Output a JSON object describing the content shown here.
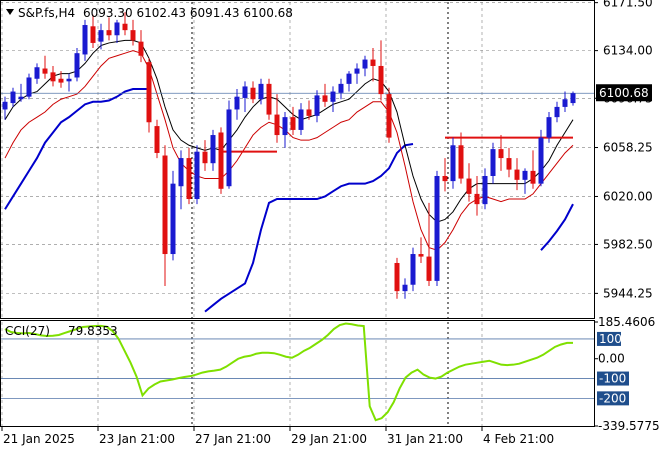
{
  "header": {
    "symbol": "S&P.fs,H4",
    "ohlc": "6093.30 6102.43 6091.43 6100.68"
  },
  "indicator": {
    "name": "CCI(27)",
    "value": "79.8353"
  },
  "colors": {
    "bull": "#1a1ad0",
    "bear": "#e01010",
    "band_outer": "#0000cc",
    "band_mid": "#000000",
    "band_inner": "#cc0000",
    "level_line": "#e01010",
    "cci_line": "#7fe000",
    "cci_level_bg": "#1f4e8c",
    "price_tag_bg": "#000000",
    "grid": "#808080"
  },
  "chart_data": [
    {
      "type": "candlestick",
      "title": "S&P.fs,H4",
      "subtitle": "6093.30 6102.43 6091.43 6100.68",
      "ylim": [
        5925,
        6172
      ],
      "y_ticks": [
        "6171.50",
        "6134.00",
        "6096.75",
        "6058.25",
        "6020.00",
        "5982.50",
        "5944.25"
      ],
      "x_ticks": [
        "21 Jan 2025",
        "23 Jan 21:00",
        "27 Jan 21:00",
        "29 Jan 21:00",
        "31 Jan 21:00",
        "4 Feb 21:00"
      ],
      "current_price": "6100.68",
      "grid": true,
      "candles": [
        {
          "o": 6088,
          "h": 6098,
          "l": 6080,
          "c": 6094
        },
        {
          "o": 6093,
          "h": 6105,
          "l": 6090,
          "c": 6102
        },
        {
          "o": 6096,
          "h": 6108,
          "l": 6094,
          "c": 6098
        },
        {
          "o": 6098,
          "h": 6116,
          "l": 6096,
          "c": 6113
        },
        {
          "o": 6112,
          "h": 6124,
          "l": 6108,
          "c": 6121
        },
        {
          "o": 6120,
          "h": 6130,
          "l": 6112,
          "c": 6116
        },
        {
          "o": 6117,
          "h": 6122,
          "l": 6106,
          "c": 6110
        },
        {
          "o": 6112,
          "h": 6118,
          "l": 6105,
          "c": 6109
        },
        {
          "o": 6110,
          "h": 6116,
          "l": 6102,
          "c": 6112
        },
        {
          "o": 6113,
          "h": 6136,
          "l": 6110,
          "c": 6132
        },
        {
          "o": 6131,
          "h": 6158,
          "l": 6126,
          "c": 6154
        },
        {
          "o": 6153,
          "h": 6162,
          "l": 6136,
          "c": 6140
        },
        {
          "o": 6141,
          "h": 6155,
          "l": 6135,
          "c": 6150
        },
        {
          "o": 6150,
          "h": 6160,
          "l": 6142,
          "c": 6146
        },
        {
          "o": 6146,
          "h": 6158,
          "l": 6140,
          "c": 6156
        },
        {
          "o": 6155,
          "h": 6164,
          "l": 6146,
          "c": 6150
        },
        {
          "o": 6150,
          "h": 6158,
          "l": 6138,
          "c": 6142
        },
        {
          "o": 6141,
          "h": 6150,
          "l": 6125,
          "c": 6130
        },
        {
          "o": 6125,
          "h": 6128,
          "l": 6070,
          "c": 6078
        },
        {
          "o": 6075,
          "h": 6080,
          "l": 6050,
          "c": 6054
        },
        {
          "o": 6052,
          "h": 6060,
          "l": 5950,
          "c": 5975
        },
        {
          "o": 5975,
          "h": 6040,
          "l": 5970,
          "c": 6030
        },
        {
          "o": 6028,
          "h": 6056,
          "l": 6010,
          "c": 6050
        },
        {
          "o": 6050,
          "h": 6058,
          "l": 6014,
          "c": 6018
        },
        {
          "o": 6018,
          "h": 6060,
          "l": 6014,
          "c": 6055
        },
        {
          "o": 6055,
          "h": 6064,
          "l": 6040,
          "c": 6046
        },
        {
          "o": 6046,
          "h": 6072,
          "l": 6040,
          "c": 6068
        },
        {
          "o": 6070,
          "h": 6074,
          "l": 6022,
          "c": 6026
        },
        {
          "o": 6028,
          "h": 6095,
          "l": 6026,
          "c": 6088
        },
        {
          "o": 6088,
          "h": 6104,
          "l": 6080,
          "c": 6098
        },
        {
          "o": 6097,
          "h": 6110,
          "l": 6086,
          "c": 6106
        },
        {
          "o": 6105,
          "h": 6110,
          "l": 6093,
          "c": 6096
        },
        {
          "o": 6096,
          "h": 6112,
          "l": 6092,
          "c": 6108
        },
        {
          "o": 6108,
          "h": 6112,
          "l": 6080,
          "c": 6084
        },
        {
          "o": 6084,
          "h": 6100,
          "l": 6062,
          "c": 6068
        },
        {
          "o": 6068,
          "h": 6086,
          "l": 6058,
          "c": 6082
        },
        {
          "o": 6082,
          "h": 6090,
          "l": 6068,
          "c": 6072
        },
        {
          "o": 6072,
          "h": 6093,
          "l": 6068,
          "c": 6088
        },
        {
          "o": 6088,
          "h": 6095,
          "l": 6080,
          "c": 6083
        },
        {
          "o": 6083,
          "h": 6103,
          "l": 6078,
          "c": 6099
        },
        {
          "o": 6099,
          "h": 6108,
          "l": 6090,
          "c": 6094
        },
        {
          "o": 6094,
          "h": 6106,
          "l": 6086,
          "c": 6102
        },
        {
          "o": 6101,
          "h": 6112,
          "l": 6096,
          "c": 6108
        },
        {
          "o": 6108,
          "h": 6118,
          "l": 6102,
          "c": 6116
        },
        {
          "o": 6116,
          "h": 6124,
          "l": 6108,
          "c": 6120
        },
        {
          "o": 6120,
          "h": 6130,
          "l": 6114,
          "c": 6127
        },
        {
          "o": 6127,
          "h": 6136,
          "l": 6110,
          "c": 6122
        },
        {
          "o": 6122,
          "h": 6142,
          "l": 6095,
          "c": 6100
        },
        {
          "o": 6100,
          "h": 6105,
          "l": 6062,
          "c": 6066
        },
        {
          "o": 5968,
          "h": 5972,
          "l": 5940,
          "c": 5946
        },
        {
          "o": 5946,
          "h": 5956,
          "l": 5940,
          "c": 5951
        },
        {
          "o": 5951,
          "h": 5980,
          "l": 5946,
          "c": 5975
        },
        {
          "o": 5975,
          "h": 5988,
          "l": 5968,
          "c": 5973
        },
        {
          "o": 5973,
          "h": 6015,
          "l": 5950,
          "c": 5954
        },
        {
          "o": 5954,
          "h": 6040,
          "l": 5950,
          "c": 6036
        },
        {
          "o": 6036,
          "h": 6050,
          "l": 6024,
          "c": 6032
        },
        {
          "o": 6032,
          "h": 6066,
          "l": 6026,
          "c": 6060
        },
        {
          "o": 6060,
          "h": 6070,
          "l": 6030,
          "c": 6034
        },
        {
          "o": 6034,
          "h": 6046,
          "l": 6016,
          "c": 6022
        },
        {
          "o": 6022,
          "h": 6036,
          "l": 6005,
          "c": 6014
        },
        {
          "o": 6014,
          "h": 6042,
          "l": 6010,
          "c": 6036
        },
        {
          "o": 6036,
          "h": 6062,
          "l": 6030,
          "c": 6057
        },
        {
          "o": 6057,
          "h": 6068,
          "l": 6040,
          "c": 6050
        },
        {
          "o": 6050,
          "h": 6058,
          "l": 6035,
          "c": 6041
        },
        {
          "o": 6041,
          "h": 6050,
          "l": 6025,
          "c": 6033
        },
        {
          "o": 6033,
          "h": 6042,
          "l": 6022,
          "c": 6040
        },
        {
          "o": 6040,
          "h": 6056,
          "l": 6026,
          "c": 6030
        },
        {
          "o": 6030,
          "h": 6072,
          "l": 6028,
          "c": 6066
        },
        {
          "o": 6066,
          "h": 6086,
          "l": 6062,
          "c": 6082
        },
        {
          "o": 6082,
          "h": 6094,
          "l": 6078,
          "c": 6090
        },
        {
          "o": 6090,
          "h": 6102,
          "l": 6086,
          "c": 6096
        },
        {
          "o": 6093,
          "h": 6102,
          "l": 6091,
          "c": 6100.68
        }
      ],
      "band_outer_segments": [
        [
          6010,
          6020,
          6030,
          6040,
          6050,
          6062,
          6070,
          6078,
          6082,
          6087,
          6092,
          6094,
          6094,
          6095,
          6098,
          6102,
          6104,
          6104,
          6104
        ],
        [
          5930,
          5935,
          5940,
          5944,
          5948,
          5952,
          5968,
          5994,
          6015,
          6018,
          6018,
          6018,
          6018,
          6018,
          6018,
          6020,
          6024,
          6028,
          6030,
          6030,
          6030,
          6032,
          6036,
          6042,
          6054,
          6060,
          6061
        ],
        [
          5978,
          5985,
          5993,
          6002,
          6014
        ]
      ],
      "band_outer_offsets": [
        0,
        25,
        67
      ],
      "band_mid": [
        6080,
        6090,
        6096,
        6100,
        6102,
        6108,
        6114,
        6116,
        6116,
        6118,
        6124,
        6132,
        6138,
        6140,
        6141,
        6142,
        6142,
        6140,
        6128,
        6112,
        6090,
        6072,
        6064,
        6060,
        6058,
        6056,
        6058,
        6056,
        6064,
        6072,
        6082,
        6090,
        6096,
        6098,
        6096,
        6090,
        6084,
        6080,
        6082,
        6084,
        6088,
        6092,
        6094,
        6096,
        6102,
        6108,
        6112,
        6110,
        6102,
        6086,
        6060,
        6036,
        6018,
        6006,
        6000,
        6002,
        6008,
        6018,
        6026,
        6030,
        6030,
        6030,
        6030,
        6030,
        6030,
        6030,
        6034,
        6040,
        6048,
        6060,
        6070,
        6080
      ],
      "band_inner": [
        6050,
        6062,
        6072,
        6078,
        6082,
        6086,
        6092,
        6096,
        6098,
        6100,
        6106,
        6114,
        6122,
        6128,
        6130,
        6132,
        6134,
        6132,
        6120,
        6100,
        6080,
        6058,
        6046,
        6040,
        6036,
        6034,
        6034,
        6034,
        6040,
        6048,
        6058,
        6068,
        6074,
        6078,
        6076,
        6072,
        6066,
        6064,
        6064,
        6066,
        6070,
        6074,
        6078,
        6080,
        6086,
        6090,
        6094,
        6094,
        6086,
        6070,
        6044,
        6016,
        5994,
        5980,
        5978,
        5984,
        5994,
        6006,
        6014,
        6018,
        6020,
        6018,
        6016,
        6018,
        6018,
        6018,
        6022,
        6030,
        6038,
        6046,
        6054,
        6060
      ],
      "horizontal_levels": [
        {
          "value": 6055,
          "from": 27,
          "to": 34
        },
        {
          "value": 6066,
          "from": 55,
          "to": 71
        }
      ],
      "session_separators": [
        23,
        55
      ]
    },
    {
      "type": "line",
      "title": "CCI(27)",
      "value_label": "79.8353",
      "ylim": [
        -339.5775,
        185.4606
      ],
      "y_ticks": [
        "185.4606",
        "100",
        "0.00",
        "-100",
        "-200",
        "-339.5775"
      ],
      "levels": [
        100,
        -100,
        -200
      ],
      "values": [
        150,
        135,
        130,
        128,
        130,
        125,
        118,
        115,
        116,
        120,
        130,
        140,
        150,
        160,
        163,
        165,
        166,
        162,
        140,
        100,
        40,
        -20,
        -90,
        -185,
        -150,
        -130,
        -115,
        -110,
        -105,
        -98,
        -92,
        -88,
        -80,
        -70,
        -64,
        -60,
        -55,
        -40,
        -20,
        0,
        10,
        15,
        25,
        30,
        30,
        28,
        20,
        10,
        5,
        20,
        40,
        55,
        75,
        95,
        120,
        150,
        170,
        178,
        174,
        168,
        165,
        -240,
        -310,
        -300,
        -270,
        -220,
        -150,
        -95,
        -70,
        -55,
        -80,
        -95,
        -100,
        -90,
        -70,
        -55,
        -40,
        -30,
        -25,
        -20,
        -15,
        -10,
        -20,
        -30,
        -32,
        -30,
        -25,
        -15,
        -5,
        5,
        20,
        40,
        60,
        72,
        80,
        79.84
      ],
      "cci_x_map": "linear"
    }
  ]
}
